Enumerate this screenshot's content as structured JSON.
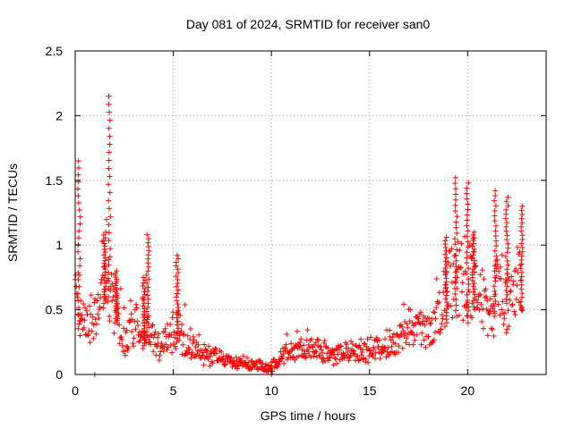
{
  "chart_data": {
    "type": "scatter",
    "title": "Day 081 of 2024, SRMTID for receiver san0",
    "xlabel": "GPS time / hours",
    "ylabel": "SRMTID / TECUs",
    "xlim": [
      0,
      24
    ],
    "ylim": [
      0,
      2.5
    ],
    "x_ticks": [
      0,
      5,
      10,
      15,
      20
    ],
    "x_tick_labels": [
      "0",
      "5",
      "10",
      "15",
      "20"
    ],
    "y_ticks": [
      0,
      0.5,
      1,
      1.5,
      2,
      2.5
    ],
    "y_tick_labels": [
      "0",
      "0.5",
      "1",
      "1.5",
      "2",
      "2.5"
    ],
    "grid": true,
    "marker": "+",
    "color": "#ff0000",
    "profile": [
      [
        0.0,
        0.65
      ],
      [
        0.3,
        0.55
      ],
      [
        0.6,
        0.35
      ],
      [
        1.0,
        0.45
      ],
      [
        1.3,
        0.6
      ],
      [
        1.6,
        0.85
      ],
      [
        1.8,
        0.6
      ],
      [
        2.1,
        0.45
      ],
      [
        2.5,
        0.25
      ],
      [
        3.0,
        0.38
      ],
      [
        3.5,
        0.42
      ],
      [
        3.8,
        0.3
      ],
      [
        4.2,
        0.22
      ],
      [
        4.8,
        0.3
      ],
      [
        5.2,
        0.35
      ],
      [
        5.6,
        0.25
      ],
      [
        6.0,
        0.2
      ],
      [
        6.5,
        0.16
      ],
      [
        7.0,
        0.14
      ],
      [
        8.0,
        0.1
      ],
      [
        9.0,
        0.08
      ],
      [
        10.0,
        0.05
      ],
      [
        10.5,
        0.14
      ],
      [
        11.0,
        0.18
      ],
      [
        12.0,
        0.2
      ],
      [
        13.0,
        0.15
      ],
      [
        14.0,
        0.18
      ],
      [
        15.0,
        0.17
      ],
      [
        16.0,
        0.24
      ],
      [
        16.5,
        0.3
      ],
      [
        17.2,
        0.38
      ],
      [
        17.5,
        0.35
      ],
      [
        18.0,
        0.32
      ],
      [
        18.5,
        0.45
      ],
      [
        19.0,
        0.7
      ],
      [
        19.5,
        0.75
      ],
      [
        20.0,
        0.6
      ],
      [
        20.4,
        0.8
      ],
      [
        20.8,
        0.55
      ],
      [
        21.2,
        0.4
      ],
      [
        21.6,
        0.75
      ],
      [
        22.0,
        0.55
      ],
      [
        22.4,
        0.65
      ],
      [
        22.8,
        0.8
      ]
    ],
    "peaks": [
      {
        "x": 0.2,
        "y_min": 0.3,
        "y_max": 1.65
      },
      {
        "x": 1.5,
        "y_min": 0.55,
        "y_max": 1.1
      },
      {
        "x": 1.75,
        "y_min": 0.6,
        "y_max": 2.15
      },
      {
        "x": 2.1,
        "y_min": 0.4,
        "y_max": 0.8
      },
      {
        "x": 3.5,
        "y_min": 0.2,
        "y_max": 0.75
      },
      {
        "x": 3.7,
        "y_min": 0.3,
        "y_max": 1.08
      },
      {
        "x": 5.2,
        "y_min": 0.25,
        "y_max": 0.92
      },
      {
        "x": 18.9,
        "y_min": 0.4,
        "y_max": 1.06
      },
      {
        "x": 19.4,
        "y_min": 0.45,
        "y_max": 1.52
      },
      {
        "x": 20.0,
        "y_min": 0.45,
        "y_max": 1.48
      },
      {
        "x": 20.3,
        "y_min": 0.55,
        "y_max": 1.1
      },
      {
        "x": 21.4,
        "y_min": 0.45,
        "y_max": 1.42
      },
      {
        "x": 22.0,
        "y_min": 0.55,
        "y_max": 1.37
      },
      {
        "x": 22.75,
        "y_min": 0.5,
        "y_max": 1.3
      }
    ],
    "outliers": [
      [
        1.0,
        0.0
      ],
      [
        10.0,
        0.0
      ]
    ]
  }
}
